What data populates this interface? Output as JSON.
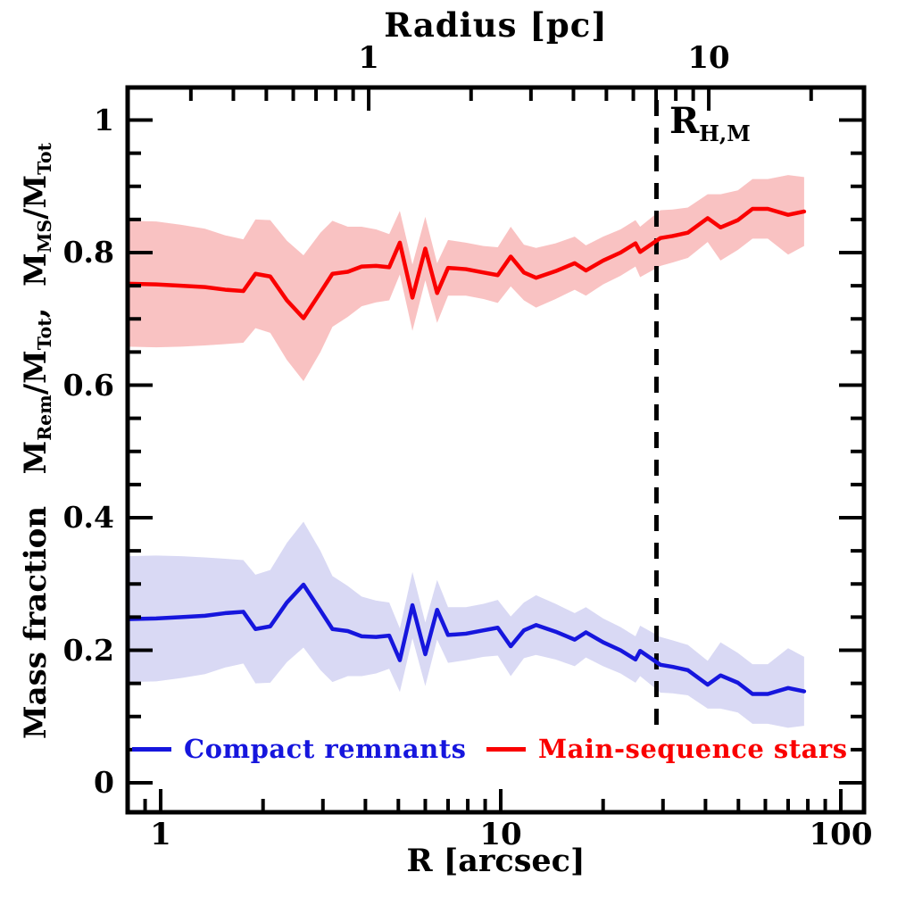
{
  "annotation": {
    "main": "R",
    "sub": "H,M"
  },
  "ylabel_parts": [
    {
      "t": "Mass fraction   "
    },
    {
      "t": "M"
    },
    {
      "t": "Rem",
      "sub": true
    },
    {
      "t": "/M"
    },
    {
      "t": "Tot",
      "sub": true
    },
    {
      "t": ",  "
    },
    {
      "t": "M"
    },
    {
      "t": "MS",
      "sub": true
    },
    {
      "t": "/M"
    },
    {
      "t": "Tot",
      "sub": true
    }
  ],
  "chart_data": {
    "type": "line",
    "x_unit": "arcsec",
    "x_arcsec": [
      0.8,
      0.97,
      1.15,
      1.35,
      1.55,
      1.75,
      1.9,
      2.1,
      2.35,
      2.63,
      2.95,
      3.2,
      3.55,
      3.9,
      4.3,
      4.7,
      5.05,
      5.5,
      6.0,
      6.5,
      7.0,
      7.9,
      8.9,
      9.8,
      10.7,
      11.7,
      12.7,
      14.5,
      16.5,
      17.8,
      20.0,
      22.5,
      24.9,
      25.7,
      29.5,
      32.0,
      35.5,
      40.6,
      44.3,
      49.8,
      55.0,
      61.0,
      70.0,
      78.0
    ],
    "series": [
      {
        "name": "Compact remnants",
        "color": "#1616dd",
        "band_color": "#d9d9f4",
        "values": [
          0.247,
          0.248,
          0.25,
          0.252,
          0.256,
          0.258,
          0.232,
          0.236,
          0.272,
          0.299,
          0.26,
          0.232,
          0.229,
          0.221,
          0.22,
          0.222,
          0.185,
          0.268,
          0.194,
          0.261,
          0.223,
          0.225,
          0.23,
          0.234,
          0.206,
          0.23,
          0.238,
          0.228,
          0.216,
          0.227,
          0.212,
          0.2,
          0.186,
          0.199,
          0.178,
          0.175,
          0.17,
          0.148,
          0.162,
          0.151,
          0.134,
          0.134,
          0.143,
          0.138
        ],
        "band_halfwidth": [
          0.095,
          0.095,
          0.092,
          0.088,
          0.082,
          0.078,
          0.082,
          0.085,
          0.09,
          0.095,
          0.09,
          0.08,
          0.068,
          0.06,
          0.055,
          0.05,
          0.048,
          0.05,
          0.048,
          0.045,
          0.042,
          0.04,
          0.04,
          0.042,
          0.045,
          0.042,
          0.045,
          0.042,
          0.04,
          0.038,
          0.036,
          0.035,
          0.035,
          0.038,
          0.042,
          0.04,
          0.038,
          0.036,
          0.05,
          0.045,
          0.045,
          0.045,
          0.06,
          0.052
        ]
      },
      {
        "name": "Main-sequence stars",
        "color": "#fa0000",
        "band_color": "#f9c2c2",
        "values": [
          0.753,
          0.752,
          0.75,
          0.748,
          0.744,
          0.742,
          0.768,
          0.764,
          0.728,
          0.701,
          0.74,
          0.768,
          0.771,
          0.779,
          0.78,
          0.778,
          0.815,
          0.732,
          0.806,
          0.739,
          0.777,
          0.775,
          0.77,
          0.766,
          0.794,
          0.77,
          0.762,
          0.772,
          0.784,
          0.773,
          0.788,
          0.8,
          0.814,
          0.801,
          0.822,
          0.825,
          0.83,
          0.852,
          0.838,
          0.849,
          0.866,
          0.866,
          0.857,
          0.862
        ],
        "band_halfwidth": [
          0.095,
          0.095,
          0.092,
          0.088,
          0.082,
          0.078,
          0.082,
          0.085,
          0.09,
          0.095,
          0.09,
          0.08,
          0.068,
          0.06,
          0.055,
          0.05,
          0.048,
          0.05,
          0.048,
          0.045,
          0.042,
          0.04,
          0.04,
          0.042,
          0.045,
          0.042,
          0.045,
          0.042,
          0.04,
          0.038,
          0.036,
          0.035,
          0.035,
          0.038,
          0.042,
          0.04,
          0.038,
          0.036,
          0.05,
          0.045,
          0.045,
          0.045,
          0.06,
          0.052
        ]
      }
    ],
    "x_axis": {
      "label": "R [arcsec]",
      "scale": "log",
      "range_arcsec": [
        0.8,
        117
      ],
      "major_ticks": [
        {
          "v": 1,
          "label": "1"
        },
        {
          "v": 10,
          "label": "10"
        },
        {
          "v": 100,
          "label": "100"
        }
      ],
      "minor_ticks": [
        0.9,
        2,
        3,
        4,
        5,
        6,
        7,
        8,
        9,
        20,
        30,
        40,
        50,
        60,
        70,
        80,
        90
      ]
    },
    "x_axis_top": {
      "label": "Radius [pc]",
      "scale": "log",
      "arcsec_per_pc": 4.09,
      "major_ticks": [
        {
          "v": 1,
          "label": "1"
        },
        {
          "v": 10,
          "label": "10"
        }
      ],
      "minor_ticks": [
        0.2,
        0.3,
        0.4,
        0.5,
        0.6,
        0.7,
        0.8,
        0.9,
        2,
        3,
        4,
        5,
        6,
        7,
        8,
        9,
        20
      ]
    },
    "y_axis": {
      "label": "Mass fraction M_Rem/M_Tot, M_MS/M_Tot",
      "range": [
        -0.044,
        1.049
      ],
      "major_ticks": [
        {
          "v": 0,
          "label": "0"
        },
        {
          "v": 0.2,
          "label": "0.2"
        },
        {
          "v": 0.4,
          "label": "0.4"
        },
        {
          "v": 0.6,
          "label": "0.6"
        },
        {
          "v": 0.8,
          "label": "0.8"
        },
        {
          "v": 1,
          "label": "1"
        }
      ],
      "minor_step": 0.05
    },
    "vline": {
      "x_arcsec": 28.7,
      "style": "dashed",
      "label": "R_H,M"
    },
    "grid": false,
    "legend_position": "bottom-inside"
  }
}
